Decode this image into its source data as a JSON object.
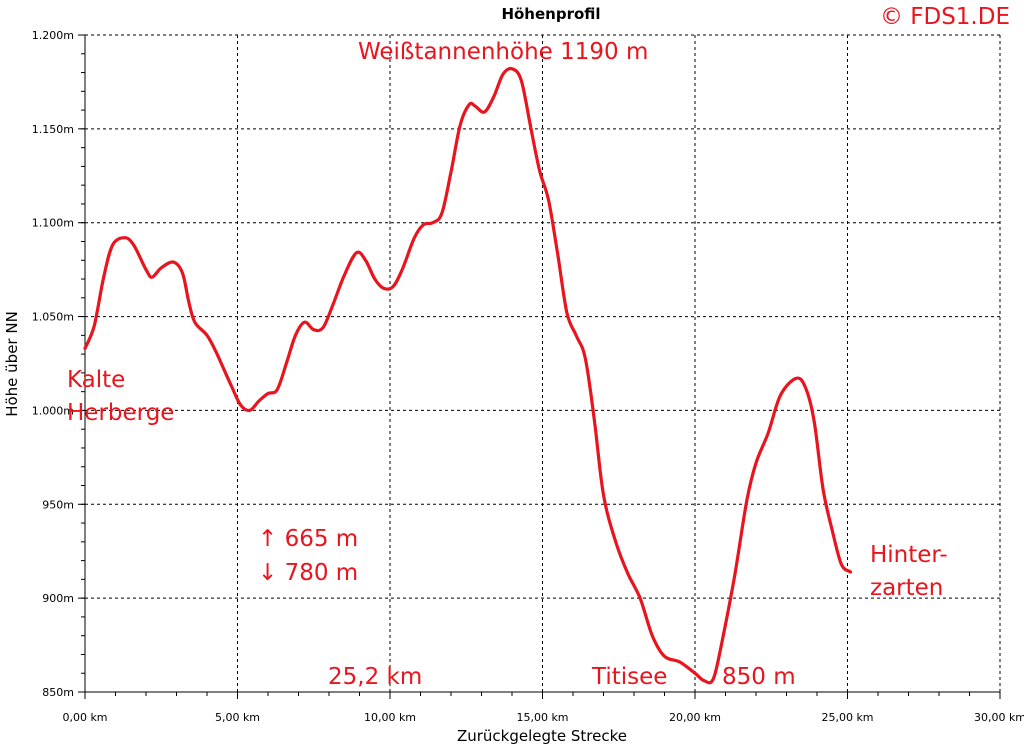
{
  "chart_data": {
    "type": "line",
    "title": "Höhenprofil",
    "copyright": "© FDS1.DE",
    "xlabel": "Zurückgelegte Strecke",
    "ylabel": "Höhe über NN",
    "xlim": [
      0,
      30
    ],
    "ylim": [
      850,
      1200
    ],
    "grid": true,
    "x_ticks": [
      "0,00 km",
      "5,00 km",
      "10,00 km",
      "15,00 km",
      "20,00 km",
      "25,00 km",
      "30,00 km"
    ],
    "y_ticks": [
      "850m",
      "900m",
      "950m",
      "1.000m",
      "1.050m",
      "1.100m",
      "1.150m",
      "1.200m"
    ],
    "series": [
      {
        "color": "#e8141e",
        "points": [
          [
            0.0,
            1033
          ],
          [
            0.3,
            1045
          ],
          [
            0.6,
            1070
          ],
          [
            0.9,
            1088
          ],
          [
            1.3,
            1092
          ],
          [
            1.6,
            1088
          ],
          [
            2.0,
            1075
          ],
          [
            2.2,
            1071
          ],
          [
            2.5,
            1076
          ],
          [
            2.9,
            1079
          ],
          [
            3.2,
            1073
          ],
          [
            3.4,
            1058
          ],
          [
            3.6,
            1047
          ],
          [
            4.0,
            1040
          ],
          [
            4.3,
            1031
          ],
          [
            4.8,
            1013
          ],
          [
            5.1,
            1003
          ],
          [
            5.4,
            1000
          ],
          [
            5.7,
            1005
          ],
          [
            6.0,
            1009
          ],
          [
            6.3,
            1011
          ],
          [
            6.6,
            1025
          ],
          [
            6.9,
            1040
          ],
          [
            7.2,
            1047
          ],
          [
            7.5,
            1043
          ],
          [
            7.8,
            1044
          ],
          [
            8.1,
            1055
          ],
          [
            8.5,
            1072
          ],
          [
            8.9,
            1084
          ],
          [
            9.2,
            1080
          ],
          [
            9.5,
            1070
          ],
          [
            9.8,
            1065
          ],
          [
            10.1,
            1066
          ],
          [
            10.4,
            1075
          ],
          [
            10.8,
            1092
          ],
          [
            11.1,
            1099
          ],
          [
            11.4,
            1100
          ],
          [
            11.7,
            1105
          ],
          [
            12.0,
            1127
          ],
          [
            12.3,
            1152
          ],
          [
            12.6,
            1163
          ],
          [
            12.8,
            1162
          ],
          [
            13.1,
            1159
          ],
          [
            13.4,
            1167
          ],
          [
            13.7,
            1179
          ],
          [
            14.0,
            1182
          ],
          [
            14.3,
            1176
          ],
          [
            14.6,
            1152
          ],
          [
            14.9,
            1128
          ],
          [
            15.2,
            1112
          ],
          [
            15.5,
            1083
          ],
          [
            15.8,
            1052
          ],
          [
            16.1,
            1040
          ],
          [
            16.4,
            1028
          ],
          [
            16.7,
            995
          ],
          [
            17.0,
            955
          ],
          [
            17.4,
            930
          ],
          [
            17.8,
            913
          ],
          [
            18.2,
            900
          ],
          [
            18.6,
            880
          ],
          [
            19.0,
            869
          ],
          [
            19.5,
            866
          ],
          [
            20.0,
            860
          ],
          [
            20.3,
            856
          ],
          [
            20.6,
            857
          ],
          [
            20.9,
            878
          ],
          [
            21.3,
            912
          ],
          [
            21.7,
            952
          ],
          [
            22.0,
            972
          ],
          [
            22.4,
            988
          ],
          [
            22.8,
            1008
          ],
          [
            23.3,
            1017
          ],
          [
            23.6,
            1013
          ],
          [
            23.9,
            995
          ],
          [
            24.2,
            958
          ],
          [
            24.5,
            936
          ],
          [
            24.8,
            918
          ],
          [
            25.1,
            914
          ]
        ]
      }
    ],
    "annotations": [
      "Weißtannenhöhe 1190 m",
      "Kalte",
      "Herberge",
      "↑ 665 m",
      "↓ 780 m",
      "25,2 km",
      "Titisee",
      "850 m",
      "Hinter-",
      "zarten"
    ]
  }
}
